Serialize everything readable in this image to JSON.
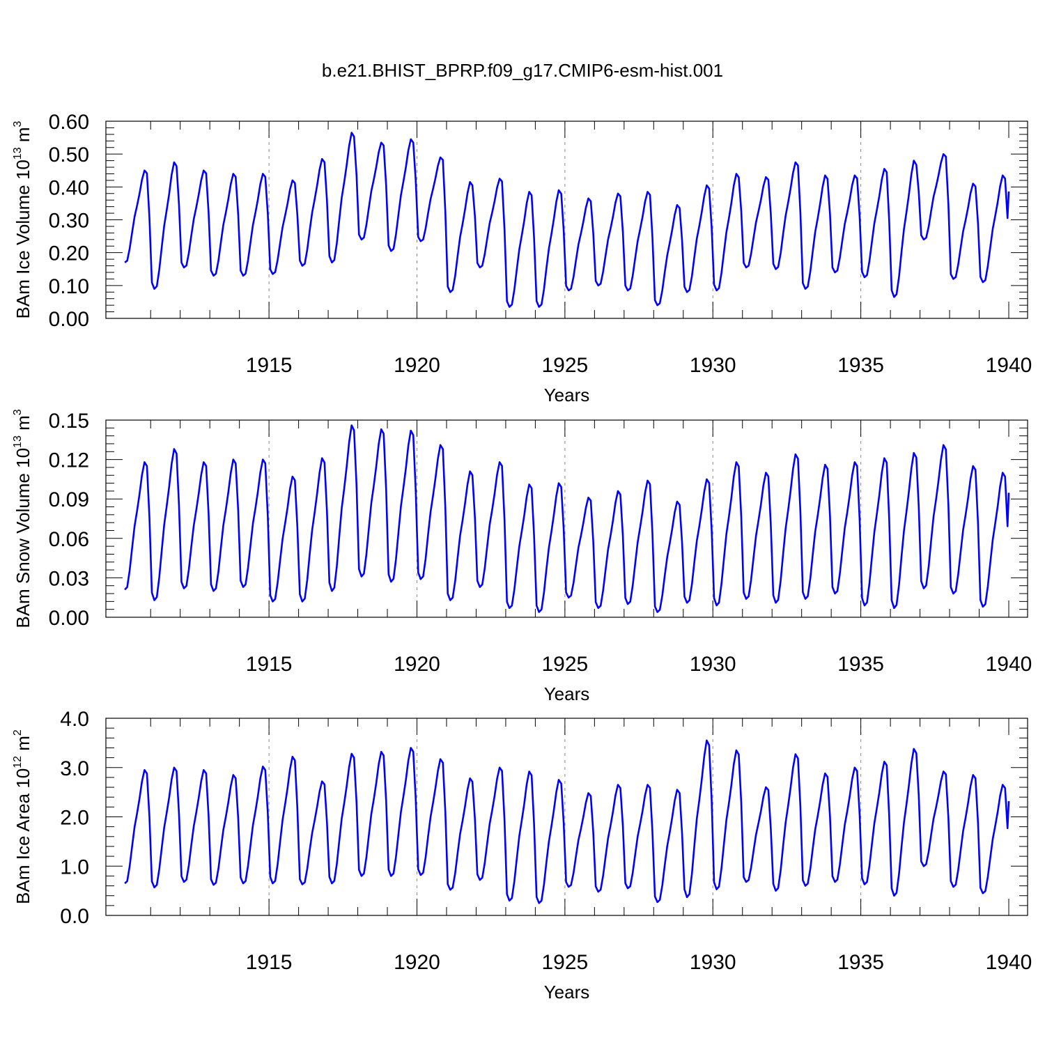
{
  "title": "b.e21.BHIST_BPRP.f09_g17.CMIP6-esm-hist.001",
  "chart_data": [
    {
      "type": "line",
      "ylabel": "BAm Ice Volume 10",
      "ylabel_exp": "13",
      "ylabel_unit": " m",
      "ylabel_unit_exp": "3",
      "xlabel": "Years",
      "xlim": [
        1910,
        1940
      ],
      "ylim": [
        0,
        0.6
      ],
      "ytick_values": [
        0.0,
        0.1,
        0.2,
        0.3,
        0.4,
        0.5,
        0.6
      ],
      "ytick_labels": [
        "0.00",
        "0.10",
        "0.20",
        "0.30",
        "0.40",
        "0.50",
        "0.60"
      ],
      "xtick_values": [
        1915,
        1920,
        1925,
        1930,
        1935,
        1940
      ],
      "xtick_labels": [
        "1915",
        "1920",
        "1925",
        "1930",
        "1935",
        "1940"
      ],
      "grid": "dashed vertical at major x ticks",
      "color": "#0000ff",
      "annual_max": [
        0.45,
        0.475,
        0.45,
        0.44,
        0.44,
        0.42,
        0.485,
        0.565,
        0.535,
        0.545,
        0.49,
        0.415,
        0.425,
        0.385,
        0.39,
        0.365,
        0.38,
        0.385,
        0.345,
        0.405,
        0.44,
        0.43,
        0.475,
        0.435,
        0.435,
        0.455,
        0.48,
        0.5,
        0.41,
        0.435
      ],
      "annual_min": [
        0.17,
        0.09,
        0.155,
        0.13,
        0.13,
        0.135,
        0.16,
        0.17,
        0.24,
        0.205,
        0.235,
        0.08,
        0.155,
        0.035,
        0.035,
        0.085,
        0.1,
        0.085,
        0.04,
        0.08,
        0.085,
        0.155,
        0.15,
        0.09,
        0.14,
        0.125,
        0.065,
        0.24,
        0.12,
        0.11
      ]
    },
    {
      "type": "line",
      "ylabel": "BAm Snow Volume 10",
      "ylabel_exp": "13",
      "ylabel_unit": " m",
      "ylabel_unit_exp": "3",
      "xlabel": "Years",
      "xlim": [
        1910,
        1940
      ],
      "ylim": [
        0,
        0.15
      ],
      "ytick_values": [
        0.0,
        0.03,
        0.06,
        0.09,
        0.12,
        0.15
      ],
      "ytick_labels": [
        "0.00",
        "0.03",
        "0.06",
        "0.09",
        "0.12",
        "0.15"
      ],
      "xtick_values": [
        1915,
        1920,
        1925,
        1930,
        1935,
        1940
      ],
      "xtick_labels": [
        "1915",
        "1920",
        "1925",
        "1930",
        "1935",
        "1940"
      ],
      "grid": "dashed vertical at major x ticks",
      "color": "#0000ff",
      "annual_max": [
        0.118,
        0.128,
        0.118,
        0.12,
        0.12,
        0.107,
        0.121,
        0.146,
        0.143,
        0.142,
        0.131,
        0.111,
        0.118,
        0.101,
        0.102,
        0.091,
        0.096,
        0.104,
        0.088,
        0.105,
        0.118,
        0.11,
        0.124,
        0.116,
        0.118,
        0.121,
        0.125,
        0.131,
        0.115,
        0.11
      ],
      "annual_min": [
        0.021,
        0.013,
        0.022,
        0.02,
        0.023,
        0.012,
        0.012,
        0.02,
        0.031,
        0.027,
        0.029,
        0.013,
        0.023,
        0.007,
        0.004,
        0.015,
        0.007,
        0.01,
        0.004,
        0.011,
        0.009,
        0.014,
        0.011,
        0.014,
        0.018,
        0.009,
        0.007,
        0.022,
        0.018,
        0.008
      ]
    },
    {
      "type": "line",
      "ylabel": "BAm Ice Area 10",
      "ylabel_exp": "12",
      "ylabel_unit": " m",
      "ylabel_unit_exp": "2",
      "xlabel": "Years",
      "xlim": [
        1910,
        1940
      ],
      "ylim": [
        0,
        4.0
      ],
      "ytick_values": [
        0.0,
        1.0,
        2.0,
        3.0,
        4.0
      ],
      "ytick_labels": [
        "0.0",
        "1.0",
        "2.0",
        "3.0",
        "4.0"
      ],
      "xtick_values": [
        1915,
        1920,
        1925,
        1930,
        1935,
        1940
      ],
      "xtick_labels": [
        "1915",
        "1920",
        "1925",
        "1930",
        "1935",
        "1940"
      ],
      "grid": "dashed vertical at major x ticks",
      "color": "#0000ff",
      "annual_max": [
        2.95,
        3.0,
        2.95,
        2.85,
        3.02,
        3.22,
        2.72,
        3.28,
        3.32,
        3.4,
        3.17,
        2.78,
        3.0,
        2.92,
        2.75,
        2.48,
        2.65,
        2.65,
        2.55,
        3.55,
        3.35,
        2.6,
        3.27,
        2.88,
        3.0,
        3.12,
        3.38,
        2.92,
        2.85,
        2.65
      ],
      "annual_min": [
        0.65,
        0.57,
        0.68,
        0.62,
        0.65,
        0.65,
        0.63,
        0.65,
        0.8,
        0.8,
        0.82,
        0.52,
        0.72,
        0.3,
        0.25,
        0.58,
        0.48,
        0.55,
        0.27,
        0.37,
        0.53,
        0.68,
        0.5,
        0.6,
        0.68,
        0.63,
        0.4,
        1.0,
        0.58,
        0.45
      ]
    }
  ]
}
